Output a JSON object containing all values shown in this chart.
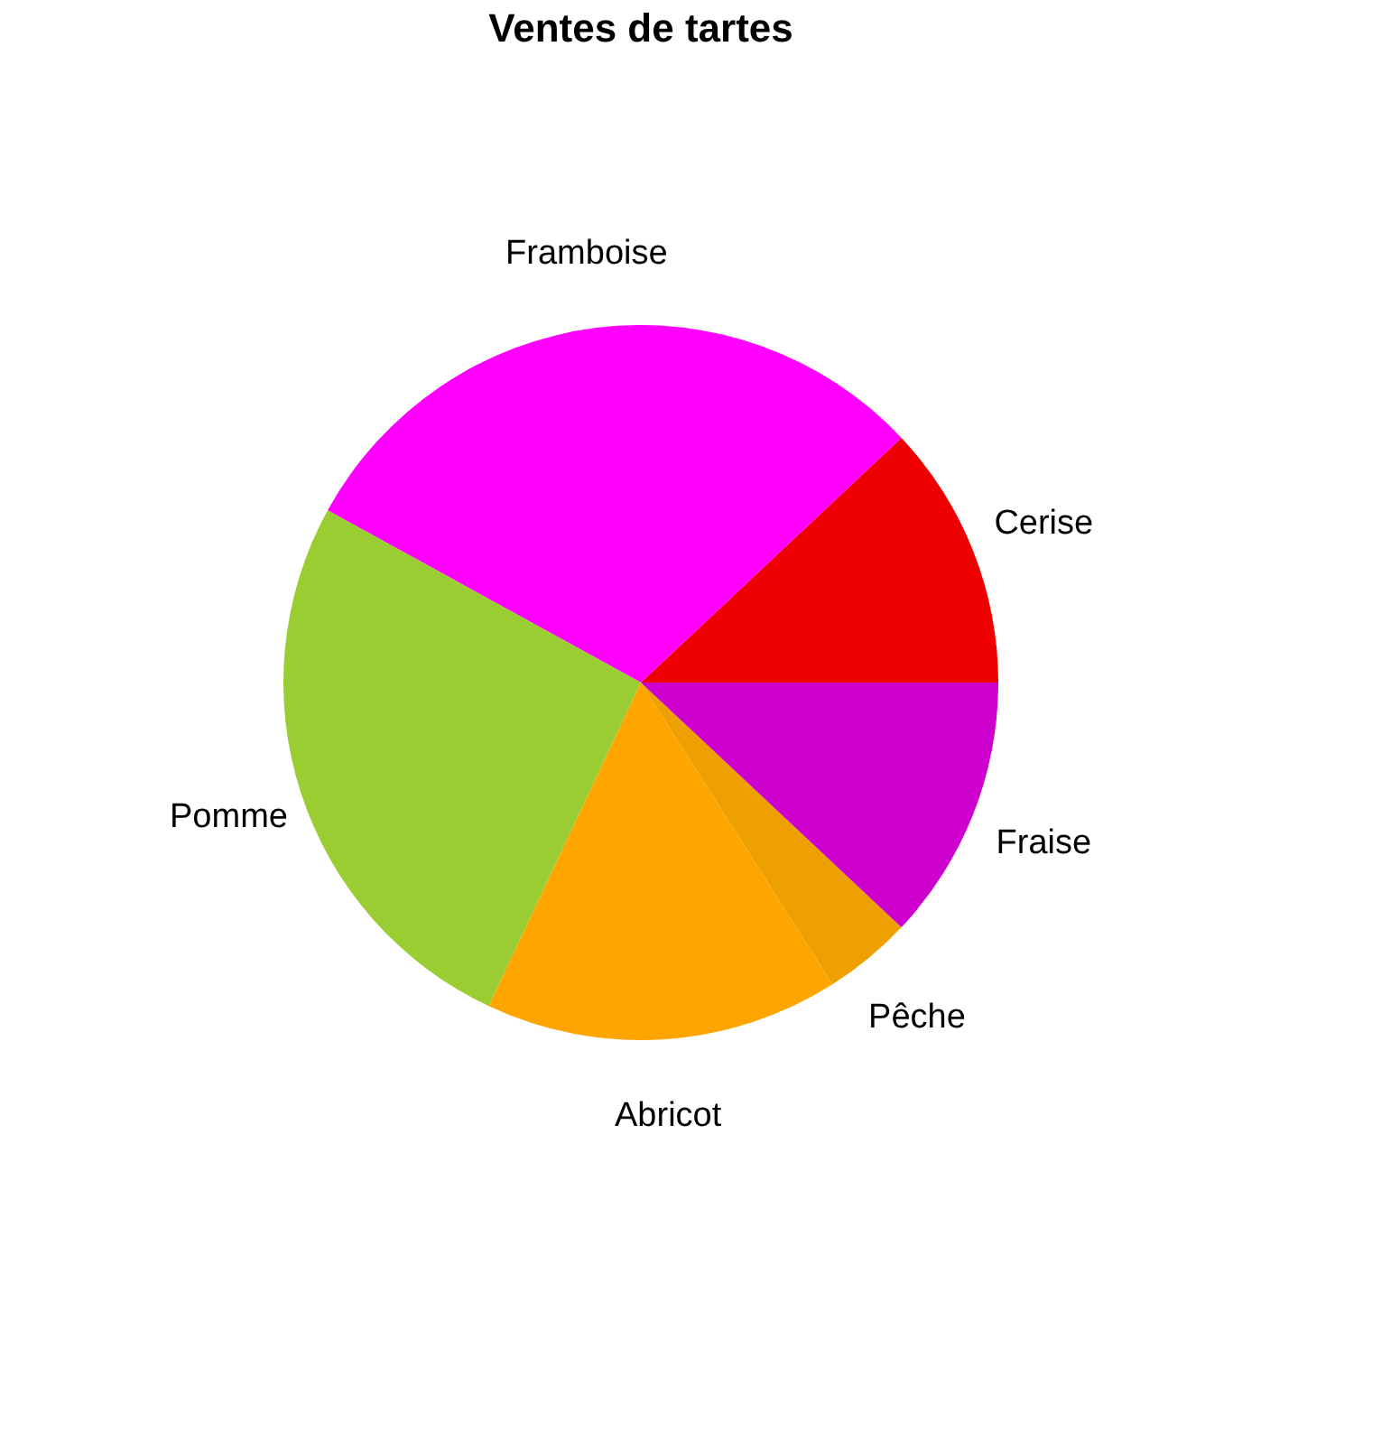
{
  "chart_data": {
    "type": "pie",
    "title": "Ventes de tartes",
    "categories": [
      "Cerise",
      "Framboise",
      "Pomme",
      "Abricot",
      "Pêche",
      "Fraise"
    ],
    "values": [
      12,
      30,
      26,
      16,
      4,
      12
    ],
    "colors": [
      "#ee0000",
      "#ff00ff",
      "#9acd32",
      "#ffa500",
      "#eea000",
      "#cd00cd"
    ],
    "legend": false
  }
}
